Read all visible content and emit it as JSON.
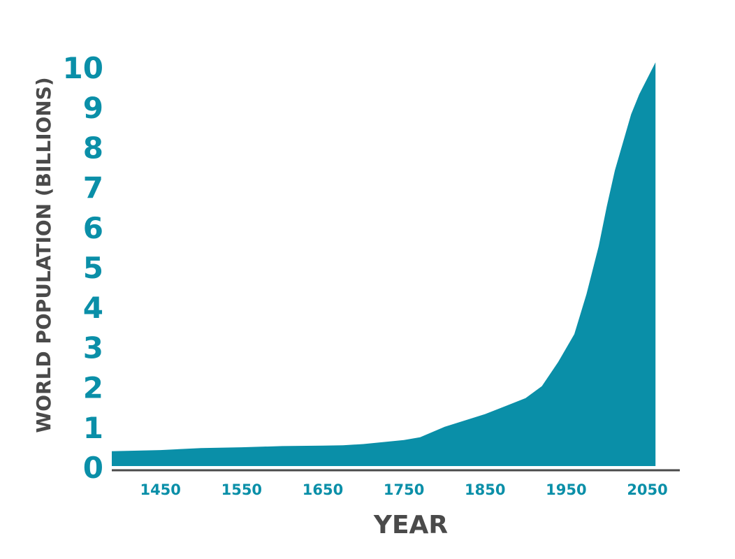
{
  "chart_data": {
    "type": "area",
    "title": "",
    "xlabel": "YEAR",
    "ylabel": "WORLD POPULATION (BILLIONS)",
    "xlim": [
      1390,
      2090
    ],
    "ylim": [
      0,
      10
    ],
    "x_ticks": [
      "1450",
      "1550",
      "1650",
      "1750",
      "1850",
      "1950",
      "2050"
    ],
    "y_ticks": [
      "0",
      "1",
      "2",
      "3",
      "4",
      "5",
      "6",
      "7",
      "8",
      "9",
      "10"
    ],
    "grid": false,
    "legend": "none",
    "series": [
      {
        "x": [
          1390,
          1450,
          1500,
          1550,
          1600,
          1650,
          1675,
          1700,
          1750,
          1770,
          1800,
          1850,
          1875,
          1900,
          1920,
          1940,
          1960,
          1975,
          1990,
          2000,
          2010,
          2020,
          2030,
          2040,
          2050,
          2060
        ],
        "y": [
          0.37,
          0.4,
          0.45,
          0.47,
          0.5,
          0.51,
          0.52,
          0.55,
          0.65,
          0.72,
          0.98,
          1.3,
          1.5,
          1.7,
          2.0,
          2.6,
          3.3,
          4.3,
          5.5,
          6.5,
          7.4,
          8.1,
          8.8,
          9.3,
          9.7,
          10.1
        ]
      }
    ],
    "colors": {
      "area": "#0a8fa8",
      "tick_labels": "#0a8fa8",
      "axis_titles": "#4a4a4a",
      "axis_line": "#4a4a4a"
    }
  }
}
